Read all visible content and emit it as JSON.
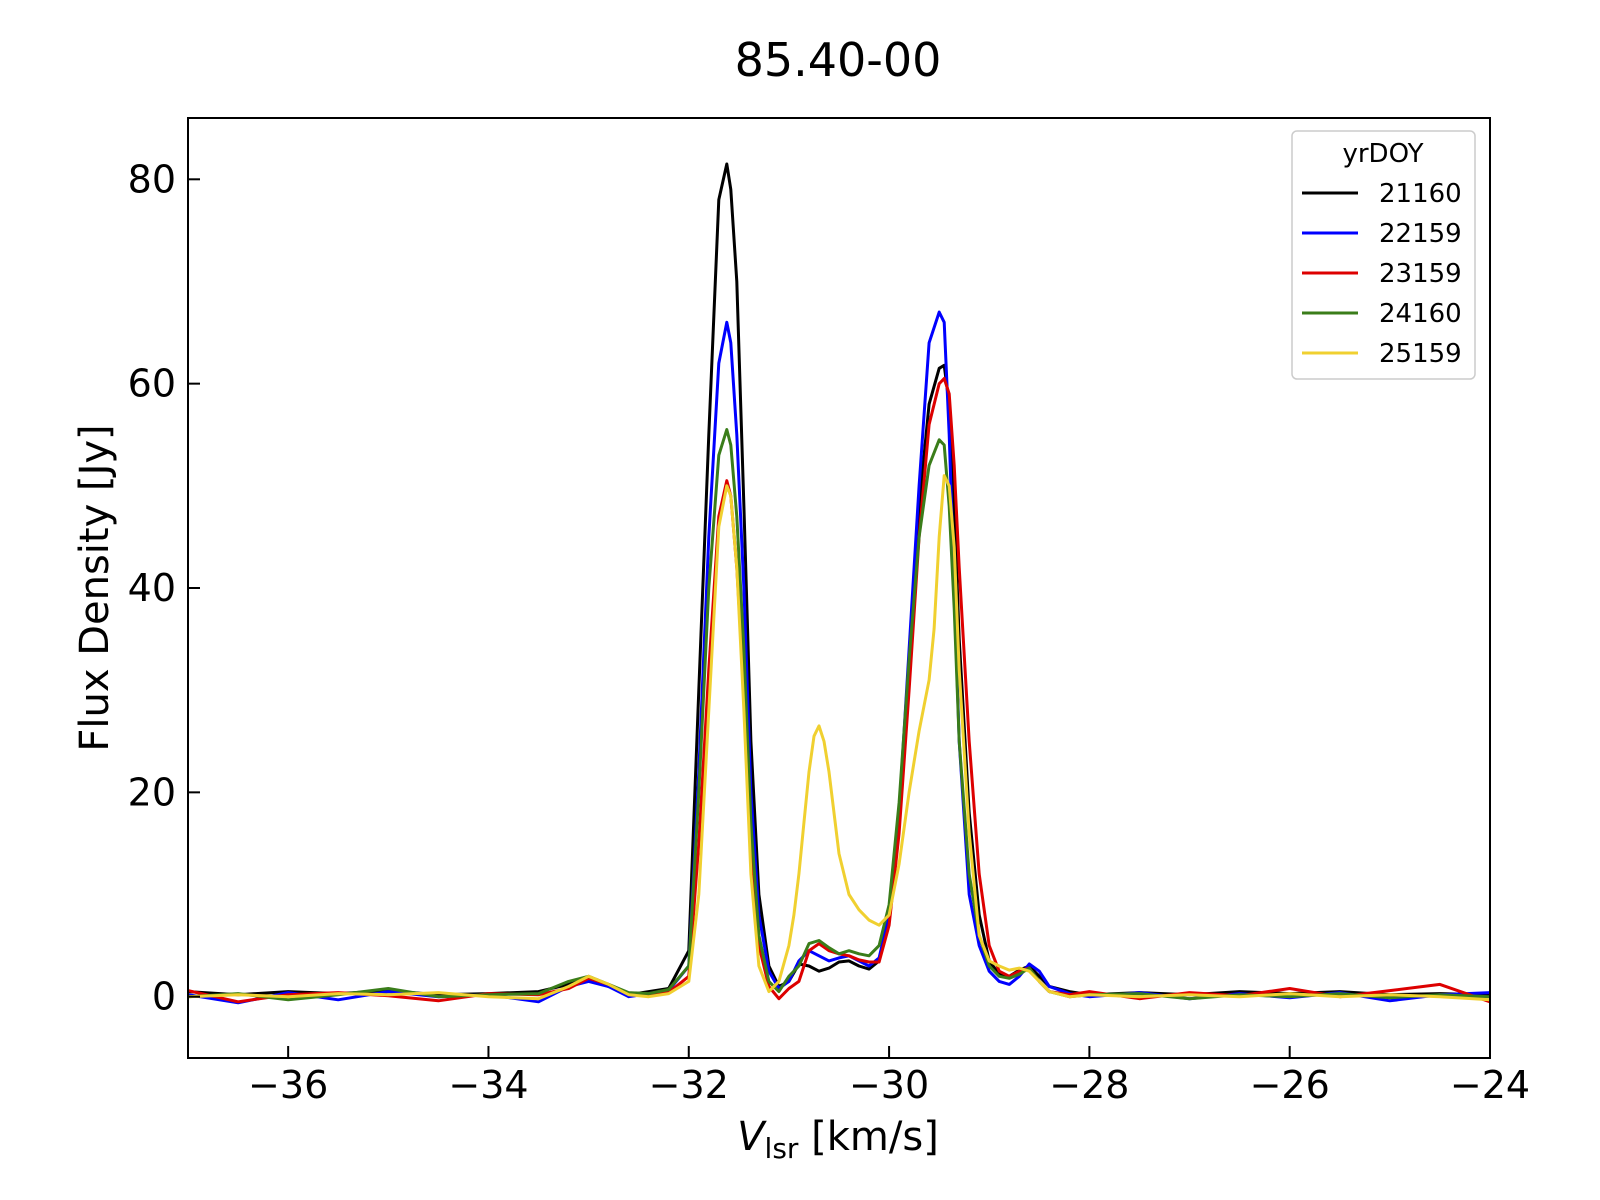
{
  "chart_data": {
    "type": "line",
    "title": "85.40-00",
    "xlabel_main": "V",
    "xlabel_sub": "lsr",
    "xlabel_unit": " [km/s]",
    "ylabel": "Flux Density [Jy]",
    "xlim": [
      -37,
      -24
    ],
    "ylim": [
      -6,
      86
    ],
    "xticks": [
      -36,
      -34,
      -32,
      -30,
      -28,
      -26,
      -24
    ],
    "xtick_labels": [
      "−36",
      "−34",
      "−32",
      "−30",
      "−28",
      "−26",
      "−24"
    ],
    "yticks": [
      0,
      20,
      40,
      60,
      80
    ],
    "ytick_labels": [
      "0",
      "20",
      "40",
      "60",
      "80"
    ],
    "grid": false,
    "legend": {
      "title": "yrDOY",
      "placement": "top-right"
    },
    "series": [
      {
        "name": "21160",
        "color": "#000000",
        "x": [
          -37,
          -36.5,
          -36,
          -35.5,
          -35,
          -34.5,
          -34,
          -33.5,
          -33.2,
          -33.0,
          -32.8,
          -32.6,
          -32.4,
          -32.2,
          -32.0,
          -31.9,
          -31.8,
          -31.7,
          -31.62,
          -31.58,
          -31.52,
          -31.45,
          -31.38,
          -31.3,
          -31.2,
          -31.1,
          -31.0,
          -30.9,
          -30.8,
          -30.7,
          -30.6,
          -30.5,
          -30.4,
          -30.3,
          -30.2,
          -30.1,
          -30.0,
          -29.9,
          -29.8,
          -29.7,
          -29.6,
          -29.5,
          -29.45,
          -29.4,
          -29.35,
          -29.3,
          -29.2,
          -29.1,
          -29.0,
          -28.9,
          -28.8,
          -28.7,
          -28.6,
          -28.5,
          -28.4,
          -28.2,
          -28.0,
          -27.5,
          -27,
          -26.5,
          -26,
          -25.5,
          -25,
          -24.5,
          -24
        ],
        "y": [
          0.5,
          0.2,
          0.5,
          0.3,
          0.6,
          0.2,
          0.3,
          0.5,
          1.2,
          1.8,
          1.0,
          0.2,
          0.5,
          0.8,
          4.5,
          30,
          55,
          78,
          81.5,
          79,
          70,
          48,
          25,
          10,
          3,
          1.0,
          1.5,
          3.2,
          3.0,
          2.5,
          2.8,
          3.4,
          3.5,
          3.0,
          2.7,
          3.5,
          8,
          17,
          32,
          48,
          58,
          61.5,
          61.8,
          58,
          48,
          35,
          18,
          8,
          3.5,
          2.2,
          2.0,
          2.6,
          3.0,
          2.0,
          1.0,
          0.5,
          0.2,
          0.4,
          0.2,
          0.5,
          0.3,
          0.5,
          0.2,
          0.3,
          0.2
        ]
      },
      {
        "name": "22159",
        "color": "#0000ff",
        "x": [
          -37,
          -36.5,
          -36,
          -35.5,
          -35,
          -34.5,
          -34,
          -33.5,
          -33.2,
          -33.0,
          -32.8,
          -32.6,
          -32.4,
          -32.2,
          -32.0,
          -31.9,
          -31.8,
          -31.7,
          -31.62,
          -31.58,
          -31.52,
          -31.45,
          -31.38,
          -31.3,
          -31.2,
          -31.1,
          -31.0,
          -30.9,
          -30.8,
          -30.7,
          -30.6,
          -30.5,
          -30.4,
          -30.3,
          -30.2,
          -30.1,
          -30.0,
          -29.9,
          -29.8,
          -29.7,
          -29.6,
          -29.5,
          -29.45,
          -29.4,
          -29.35,
          -29.3,
          -29.2,
          -29.1,
          -29.0,
          -28.9,
          -28.8,
          -28.7,
          -28.6,
          -28.5,
          -28.4,
          -28.2,
          -28.0,
          -27.5,
          -27,
          -26.5,
          -26,
          -25.5,
          -25,
          -24.5,
          -24
        ],
        "y": [
          0.2,
          -0.6,
          0.4,
          -0.3,
          0.5,
          0.0,
          0.2,
          -0.5,
          1.0,
          1.5,
          1.0,
          0.0,
          0.3,
          0.6,
          3.0,
          22,
          45,
          62,
          66,
          64,
          55,
          40,
          20,
          8,
          2.5,
          0.8,
          1.5,
          3.5,
          4.5,
          4.0,
          3.5,
          3.8,
          4.0,
          3.5,
          3.0,
          3.8,
          8,
          18,
          34,
          50,
          64,
          67,
          66,
          55,
          40,
          25,
          10,
          5,
          2.5,
          1.5,
          1.2,
          2.0,
          3.2,
          2.5,
          1.0,
          0.3,
          0.0,
          0.4,
          -0.2,
          0.3,
          -0.1,
          0.4,
          -0.4,
          0.2,
          0.4
        ]
      },
      {
        "name": "23159",
        "color": "#dd0000",
        "x": [
          -37,
          -36.5,
          -36,
          -35.5,
          -35,
          -34.5,
          -34,
          -33.5,
          -33.2,
          -33.0,
          -32.8,
          -32.6,
          -32.4,
          -32.2,
          -32.0,
          -31.9,
          -31.8,
          -31.7,
          -31.62,
          -31.58,
          -31.52,
          -31.45,
          -31.38,
          -31.3,
          -31.2,
          -31.1,
          -31.0,
          -30.9,
          -30.8,
          -30.7,
          -30.6,
          -30.5,
          -30.4,
          -30.3,
          -30.2,
          -30.1,
          -30.0,
          -29.9,
          -29.8,
          -29.7,
          -29.6,
          -29.5,
          -29.45,
          -29.4,
          -29.35,
          -29.3,
          -29.2,
          -29.1,
          -29.0,
          -28.9,
          -28.8,
          -28.7,
          -28.6,
          -28.5,
          -28.4,
          -28.2,
          -28.0,
          -27.5,
          -27,
          -26.5,
          -26,
          -25.5,
          -25,
          -24.5,
          -24
        ],
        "y": [
          0.6,
          -0.5,
          0.2,
          0.4,
          0.1,
          -0.4,
          0.3,
          0.2,
          0.8,
          1.8,
          1.2,
          0.3,
          0.2,
          0.4,
          2.0,
          15,
          32,
          47,
          50.5,
          49,
          42,
          30,
          15,
          5,
          1.0,
          -0.2,
          0.8,
          1.5,
          4.5,
          5.2,
          4.5,
          4.2,
          4.0,
          3.6,
          3.4,
          3.4,
          7,
          16,
          30,
          45,
          56,
          60,
          60.5,
          59,
          52,
          42,
          25,
          12,
          5,
          2.5,
          2.0,
          2.5,
          2.8,
          1.5,
          0.5,
          0.2,
          0.5,
          -0.2,
          0.4,
          0.1,
          0.8,
          0.0,
          0.6,
          1.2,
          -0.5
        ]
      },
      {
        "name": "24160",
        "color": "#3a7d1a",
        "x": [
          -37,
          -36.5,
          -36,
          -35.5,
          -35,
          -34.5,
          -34,
          -33.5,
          -33.2,
          -33.0,
          -32.8,
          -32.6,
          -32.4,
          -32.2,
          -32.0,
          -31.9,
          -31.8,
          -31.7,
          -31.62,
          -31.58,
          -31.52,
          -31.45,
          -31.38,
          -31.3,
          -31.2,
          -31.1,
          -31.0,
          -30.9,
          -30.8,
          -30.7,
          -30.6,
          -30.5,
          -30.4,
          -30.3,
          -30.2,
          -30.1,
          -30.0,
          -29.9,
          -29.8,
          -29.7,
          -29.6,
          -29.5,
          -29.45,
          -29.4,
          -29.35,
          -29.3,
          -29.2,
          -29.1,
          -29.0,
          -28.9,
          -28.8,
          -28.7,
          -28.6,
          -28.5,
          -28.4,
          -28.2,
          -28.0,
          -27.5,
          -27,
          -26.5,
          -26,
          -25.5,
          -25,
          -24.5,
          -24
        ],
        "y": [
          0.0,
          0.3,
          -0.3,
          0.2,
          0.8,
          0.0,
          0.2,
          0.3,
          1.5,
          2.0,
          1.2,
          0.4,
          0.3,
          0.7,
          3.0,
          20,
          40,
          53,
          55.5,
          54,
          47,
          34,
          17,
          6,
          1.5,
          0.5,
          2.0,
          3.0,
          5.2,
          5.5,
          4.8,
          4.2,
          4.5,
          4.2,
          4.0,
          5.0,
          9,
          19,
          33,
          45,
          52,
          54.5,
          54,
          48,
          38,
          25,
          12,
          6,
          3.0,
          2.0,
          1.8,
          2.2,
          2.8,
          1.5,
          0.5,
          0.0,
          0.2,
          0.3,
          -0.2,
          0.2,
          0.0,
          0.3,
          -0.1,
          0.2,
          0.0
        ]
      },
      {
        "name": "25159",
        "color": "#f0d030",
        "x": [
          -37,
          -36.5,
          -36,
          -35.5,
          -35,
          -34.5,
          -34,
          -33.5,
          -33.2,
          -33.0,
          -32.8,
          -32.6,
          -32.4,
          -32.2,
          -32.0,
          -31.9,
          -31.8,
          -31.7,
          -31.62,
          -31.58,
          -31.52,
          -31.45,
          -31.38,
          -31.3,
          -31.2,
          -31.1,
          -31.0,
          -30.95,
          -30.9,
          -30.85,
          -30.8,
          -30.75,
          -30.7,
          -30.65,
          -30.6,
          -30.55,
          -30.5,
          -30.4,
          -30.3,
          -30.2,
          -30.1,
          -30.0,
          -29.9,
          -29.8,
          -29.7,
          -29.6,
          -29.55,
          -29.5,
          -29.45,
          -29.4,
          -29.35,
          -29.3,
          -29.2,
          -29.1,
          -29.0,
          -28.9,
          -28.8,
          -28.7,
          -28.6,
          -28.5,
          -28.4,
          -28.2,
          -28.0,
          -27.5,
          -27,
          -26.5,
          -26,
          -25.5,
          -25,
          -24.5,
          -24
        ],
        "y": [
          0.0,
          0.2,
          0.0,
          0.3,
          0.2,
          0.4,
          0.0,
          -0.2,
          1.0,
          2.0,
          1.2,
          0.2,
          0.0,
          0.3,
          1.5,
          10,
          28,
          46,
          50,
          49,
          42,
          28,
          12,
          3,
          0.5,
          1.5,
          5,
          8,
          12,
          17,
          22,
          25.5,
          26.5,
          25,
          22,
          18,
          14,
          10,
          8.5,
          7.5,
          7,
          8,
          13,
          20,
          26,
          31,
          36,
          45,
          51,
          50,
          44,
          32,
          16,
          6,
          3.5,
          3.0,
          2.6,
          2.8,
          2.5,
          1.5,
          0.5,
          0.0,
          0.2,
          0.0,
          0.2,
          0.0,
          0.3,
          0.0,
          0.2,
          0.0,
          -0.3
        ]
      }
    ]
  }
}
